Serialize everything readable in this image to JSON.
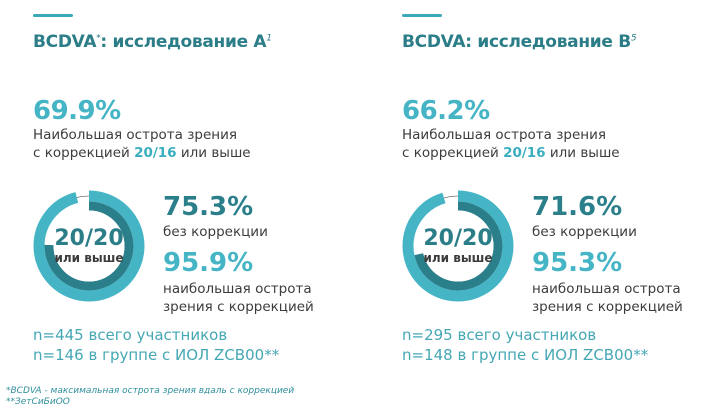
{
  "colors": {
    "dark": "#2a7f8a",
    "light": "#45b5c6",
    "track": "#cfe9ee"
  },
  "chart_data": [
    {
      "type": "donut",
      "title": "BCDVA",
      "title_sup": "*",
      "title_rest": ": исследование А",
      "ref": "1",
      "headline": {
        "value": "69.9%",
        "line1": "Наибольшая острота зрения",
        "line2_pre": "с коррекцией ",
        "line2_hl": "20/16",
        "line2_post": " или выше"
      },
      "center": {
        "value": "20/20",
        "label": "или выше"
      },
      "series": [
        {
          "name": "без коррекции",
          "value": 75.3,
          "label": "75.3%"
        },
        {
          "name": "наибольшая острота зрения с коррекцией",
          "value": 95.9,
          "label": "95.9%",
          "line1": "наибольшая острота",
          "line2": "зрения с коррекцией"
        }
      ],
      "n_total": "n=445 всего участников",
      "n_group": "n=146 в группе с ИОЛ ZCB00**"
    },
    {
      "type": "donut",
      "title": "BCDVA",
      "title_sup": "",
      "title_rest": ": исследование В",
      "ref": "5",
      "headline": {
        "value": "66.2%",
        "line1": "Наибольшая острота зрения",
        "line2_pre": "с коррекцией ",
        "line2_hl": "20/16",
        "line2_post": " или выше"
      },
      "center": {
        "value": "20/20",
        "label": "или выше"
      },
      "series": [
        {
          "name": "без коррекции",
          "value": 71.6,
          "label": "71.6%"
        },
        {
          "name": "наибольшая острота зрения с коррекцией",
          "value": 95.3,
          "label": "95.3%",
          "line1": "наибольшая острота",
          "line2": "зрения с коррекцией"
        }
      ],
      "n_total": "n=295 всего участников",
      "n_group": "n=148 в группе с ИОЛ ZCB00**"
    }
  ],
  "footnotes": [
    "*BCDVA - максимальная острота зрения вдаль с коррекцией",
    "**ЗетСиБиОО"
  ]
}
